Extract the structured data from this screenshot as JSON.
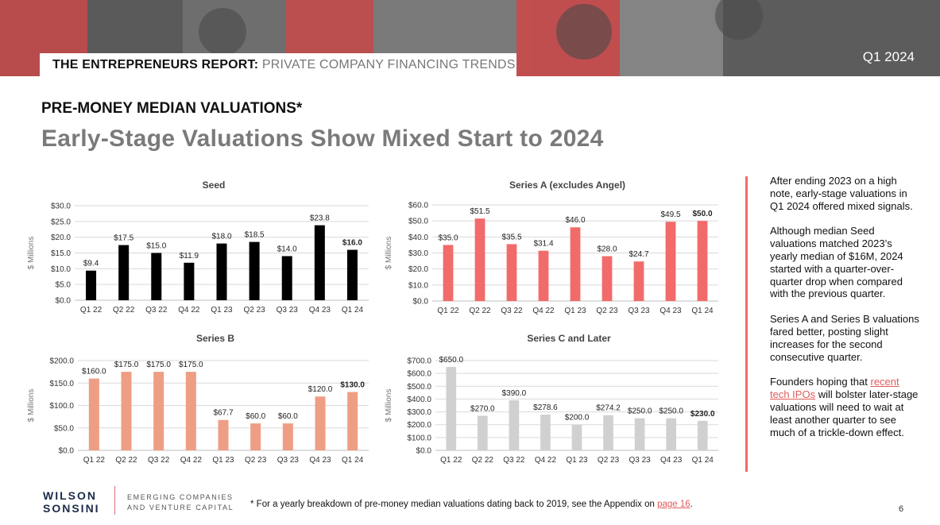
{
  "header": {
    "title_strong": "THE ENTREPRENEURS REPORT:",
    "title_light": "PRIVATE COMPANY FINANCING TRENDS",
    "quarter": "Q1 2024"
  },
  "section_title": "PRE-MONEY MEDIAN VALUATIONS*",
  "main_title": "Early-Stage Valuations Show Mixed Start to 2024",
  "colors": {
    "seed": "#000000",
    "series_a": "#f26b6b",
    "series_b": "#ee9e84",
    "series_c": "#d0d0d0",
    "accent": "#e05a5a"
  },
  "chart_data": [
    {
      "type": "bar",
      "title": "Seed",
      "ylabel": "$ Millions",
      "categories": [
        "Q1 22",
        "Q2 22",
        "Q3 22",
        "Q4 22",
        "Q1 23",
        "Q2 23",
        "Q3 23",
        "Q4 23",
        "Q1 24"
      ],
      "values": [
        9.4,
        17.5,
        15.0,
        11.9,
        18.0,
        18.5,
        14.0,
        23.8,
        16.0
      ],
      "labels": [
        "$9.4",
        "$17.5",
        "$15.0",
        "$11.9",
        "$18.0",
        "$18.5",
        "$14.0",
        "$23.8",
        "$16.0"
      ],
      "ylim": [
        0,
        30
      ],
      "yticks": [
        0,
        5,
        10,
        15,
        20,
        25,
        30
      ],
      "ytick_labels": [
        "$0.0",
        "$5.0",
        "$10.0",
        "$15.0",
        "$20.0",
        "$25.0",
        "$30.0"
      ],
      "color": "#000000",
      "grid": true
    },
    {
      "type": "bar",
      "title": "Series A (excludes Angel)",
      "ylabel": "$ Millions",
      "categories": [
        "Q1 22",
        "Q2 22",
        "Q3 22",
        "Q4 22",
        "Q1 23",
        "Q2 23",
        "Q3 23",
        "Q4 23",
        "Q1 24"
      ],
      "values": [
        35.0,
        51.5,
        35.5,
        31.4,
        46.0,
        28.0,
        24.7,
        49.5,
        50.0
      ],
      "labels": [
        "$35.0",
        "$51.5",
        "$35.5",
        "$31.4",
        "$46.0",
        "$28.0",
        "$24.7",
        "$49.5",
        "$50.0"
      ],
      "ylim": [
        0,
        60
      ],
      "yticks": [
        0,
        10,
        20,
        30,
        40,
        50,
        60
      ],
      "ytick_labels": [
        "$0.0",
        "$10.0",
        "$20.0",
        "$30.0",
        "$40.0",
        "$50.0",
        "$60.0"
      ],
      "color": "#f26b6b",
      "grid": true
    },
    {
      "type": "bar",
      "title": "Series B",
      "ylabel": "$ Millions",
      "categories": [
        "Q1 22",
        "Q2 22",
        "Q3 22",
        "Q4 22",
        "Q1 23",
        "Q2 23",
        "Q3 23",
        "Q4 23",
        "Q1 24"
      ],
      "values": [
        160.0,
        175.0,
        175.0,
        175.0,
        67.7,
        60.0,
        60.0,
        120.0,
        130.0
      ],
      "labels": [
        "$160.0",
        "$175.0",
        "$175.0",
        "$175.0",
        "$67.7",
        "$60.0",
        "$60.0",
        "$120.0",
        "$130.0"
      ],
      "ylim": [
        0,
        200
      ],
      "yticks": [
        0,
        50,
        100,
        150,
        200
      ],
      "ytick_labels": [
        "$0.0",
        "$50.0",
        "$100.0",
        "$150.0",
        "$200.0"
      ],
      "color": "#ee9e84",
      "grid": true
    },
    {
      "type": "bar",
      "title": "Series C and Later",
      "ylabel": "$ Millions",
      "categories": [
        "Q1 22",
        "Q2 22",
        "Q3 22",
        "Q4 22",
        "Q1 23",
        "Q2 23",
        "Q3 23",
        "Q4 23",
        "Q1 24"
      ],
      "values": [
        650.0,
        270.0,
        390.0,
        278.6,
        200.0,
        274.2,
        250.0,
        250.0,
        230.0
      ],
      "labels": [
        "$650.0",
        "$270.0",
        "$390.0",
        "$278.6",
        "$200.0",
        "$274.2",
        "$250.0",
        "$250.0",
        "$230.0"
      ],
      "ylim": [
        0,
        700
      ],
      "yticks": [
        0,
        100,
        200,
        300,
        400,
        500,
        600,
        700
      ],
      "ytick_labels": [
        "$0.0",
        "$100.0",
        "$200.0",
        "$300.0",
        "$400.0",
        "$500.0",
        "$600.0",
        "$700.0"
      ],
      "color": "#d0d0d0",
      "grid": true
    }
  ],
  "sidebar": {
    "p1": "After ending 2023 on a high note, early-stage valuations in Q1 2024 offered mixed signals.",
    "p2": "Although median Seed valuations matched 2023’s yearly median of $16M, 2024 started with a quarter-over-quarter drop when compared with the previous quarter.",
    "p3": "Series A and Series B valuations fared better, posting slight increases for the second consecutive quarter.",
    "p4_before": "Founders hoping that ",
    "p4_link": "recent tech IPOs",
    "p4_after": " will bolster later-stage valuations will need to wait at least another quarter to see much of a trickle-down effect."
  },
  "footer": {
    "logo_line1": "WILSON",
    "logo_line2": "SONSINI",
    "sub_line1": "EMERGING COMPANIES",
    "sub_line2": "AND VENTURE CAPITAL",
    "footnote_text": "* For a yearly breakdown of pre-money median valuations dating back to 2019, see the Appendix on ",
    "footnote_link": "page 16",
    "footnote_end": ".",
    "page_number": "6"
  }
}
